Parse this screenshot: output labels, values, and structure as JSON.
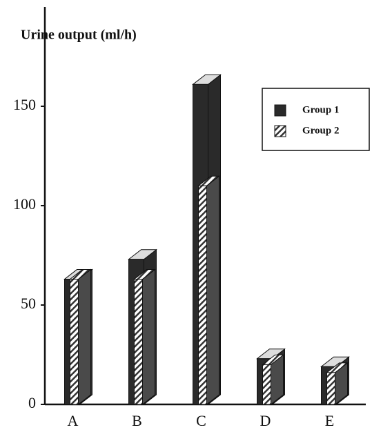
{
  "chart_data": {
    "type": "bar3d",
    "y_label": "Urine output (ml/h)",
    "categories": [
      "A",
      "B",
      "C",
      "D",
      "E"
    ],
    "series": [
      {
        "name": "Group 1",
        "color": "#2a2a2a",
        "values": [
          63,
          73,
          161,
          23,
          19
        ]
      },
      {
        "name": "Group 2",
        "color": "#4a4a4a",
        "pattern": "hatched",
        "values": [
          63,
          63,
          110,
          20,
          16
        ]
      }
    ],
    "ylim": [
      0,
      200
    ],
    "yticks": [
      0,
      50,
      100,
      150
    ]
  }
}
